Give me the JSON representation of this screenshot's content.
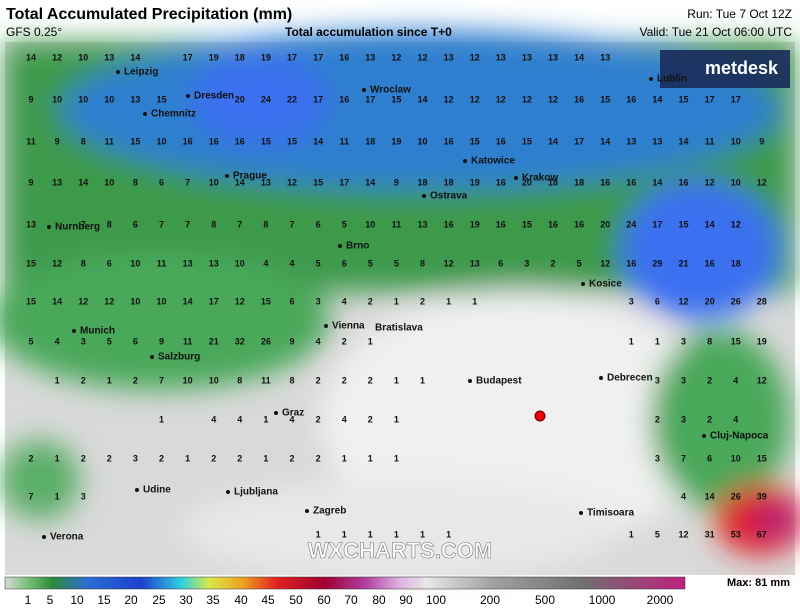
{
  "header": {
    "title": "Total Accumulated Precipitation (mm)",
    "model": "GFS 0.25°",
    "subtitle": "Total accumulation since T+0",
    "run": "Run: Tue 7 Oct 12Z",
    "valid": "Valid: Tue 21 Oct 06:00 UTC"
  },
  "logo": "metdesk",
  "watermark": "WXCHARTS.COM",
  "cities": [
    "Leipzig",
    "Dresden",
    "Chemnitz",
    "Wroclaw",
    "Lublin",
    "Katowice",
    "Krakow",
    "Prague",
    "Ostrava",
    "Nurnberg",
    "Brno",
    "Kosice",
    "Munich",
    "Salzburg",
    "Vienna",
    "Bratislava",
    "Budapest",
    "Debrecen",
    "Graz",
    "Cluj-Napoca",
    "Udine",
    "Ljubljana",
    "Zagreb",
    "Timisoara",
    "Verona"
  ],
  "grid": [
    [
      14,
      12,
      10,
      13,
      14,
      null,
      17,
      19,
      18,
      19,
      17,
      17,
      16,
      13,
      12,
      12,
      13,
      12,
      13,
      13,
      13,
      14,
      13,
      null,
      null,
      null,
      null,
      null,
      null,
      null
    ],
    [
      9,
      10,
      10,
      10,
      13,
      15,
      null,
      null,
      20,
      24,
      22,
      17,
      16,
      17,
      15,
      14,
      12,
      12,
      12,
      12,
      12,
      16,
      15,
      16,
      14,
      15,
      17,
      17,
      null,
      null
    ],
    [
      11,
      9,
      8,
      11,
      15,
      10,
      16,
      16,
      16,
      15,
      15,
      14,
      11,
      18,
      19,
      10,
      16,
      15,
      16,
      15,
      14,
      17,
      14,
      13,
      13,
      14,
      11,
      10,
      9,
      null
    ],
    [
      9,
      13,
      14,
      10,
      8,
      6,
      7,
      10,
      14,
      13,
      12,
      15,
      17,
      14,
      9,
      18,
      18,
      19,
      16,
      20,
      18,
      18,
      16,
      16,
      14,
      16,
      12,
      10,
      12,
      null
    ],
    [
      13,
      null,
      7,
      8,
      6,
      7,
      7,
      8,
      7,
      8,
      7,
      6,
      5,
      10,
      11,
      13,
      16,
      19,
      16,
      15,
      16,
      16,
      20,
      24,
      17,
      15,
      14,
      12,
      null,
      null
    ],
    [
      15,
      12,
      8,
      6,
      10,
      11,
      13,
      13,
      10,
      4,
      4,
      5,
      6,
      5,
      5,
      8,
      12,
      13,
      6,
      3,
      2,
      5,
      12,
      16,
      29,
      21,
      16,
      18,
      null,
      null
    ],
    [
      15,
      14,
      12,
      12,
      10,
      10,
      14,
      17,
      12,
      15,
      6,
      3,
      4,
      2,
      1,
      2,
      1,
      1,
      null,
      null,
      null,
      null,
      null,
      3,
      6,
      12,
      20,
      26,
      28,
      null
    ],
    [
      5,
      4,
      3,
      5,
      6,
      9,
      11,
      21,
      32,
      26,
      9,
      4,
      2,
      1,
      null,
      null,
      null,
      null,
      null,
      null,
      null,
      null,
      null,
      1,
      1,
      3,
      8,
      15,
      19,
      null
    ],
    [
      null,
      1,
      2,
      1,
      2,
      7,
      10,
      10,
      8,
      11,
      8,
      2,
      2,
      2,
      1,
      1,
      null,
      null,
      null,
      null,
      null,
      null,
      null,
      null,
      3,
      3,
      2,
      4,
      12,
      null
    ],
    [
      null,
      null,
      null,
      null,
      null,
      1,
      null,
      4,
      4,
      1,
      4,
      2,
      4,
      2,
      1,
      null,
      null,
      null,
      null,
      null,
      null,
      null,
      null,
      null,
      2,
      3,
      2,
      4,
      null,
      null
    ],
    [
      2,
      1,
      2,
      2,
      3,
      2,
      1,
      2,
      2,
      1,
      2,
      2,
      1,
      1,
      1,
      null,
      null,
      null,
      null,
      null,
      null,
      null,
      null,
      null,
      3,
      7,
      6,
      10,
      15,
      null
    ],
    [
      7,
      1,
      3,
      null,
      null,
      null,
      null,
      null,
      null,
      null,
      null,
      null,
      null,
      null,
      null,
      null,
      null,
      null,
      null,
      null,
      null,
      null,
      null,
      null,
      null,
      4,
      14,
      26,
      39,
      null
    ],
    [
      null,
      null,
      null,
      null,
      null,
      null,
      null,
      null,
      null,
      null,
      null,
      1,
      1,
      1,
      1,
      1,
      1,
      null,
      null,
      null,
      null,
      null,
      null,
      1,
      5,
      12,
      31,
      53,
      67,
      null
    ]
  ],
  "colorbar": {
    "ticks": [
      1,
      5,
      10,
      15,
      20,
      25,
      30,
      35,
      40,
      45,
      50,
      60,
      70,
      80,
      90,
      100,
      200,
      500,
      1000,
      2000
    ],
    "max": "Max: 81 mm"
  }
}
